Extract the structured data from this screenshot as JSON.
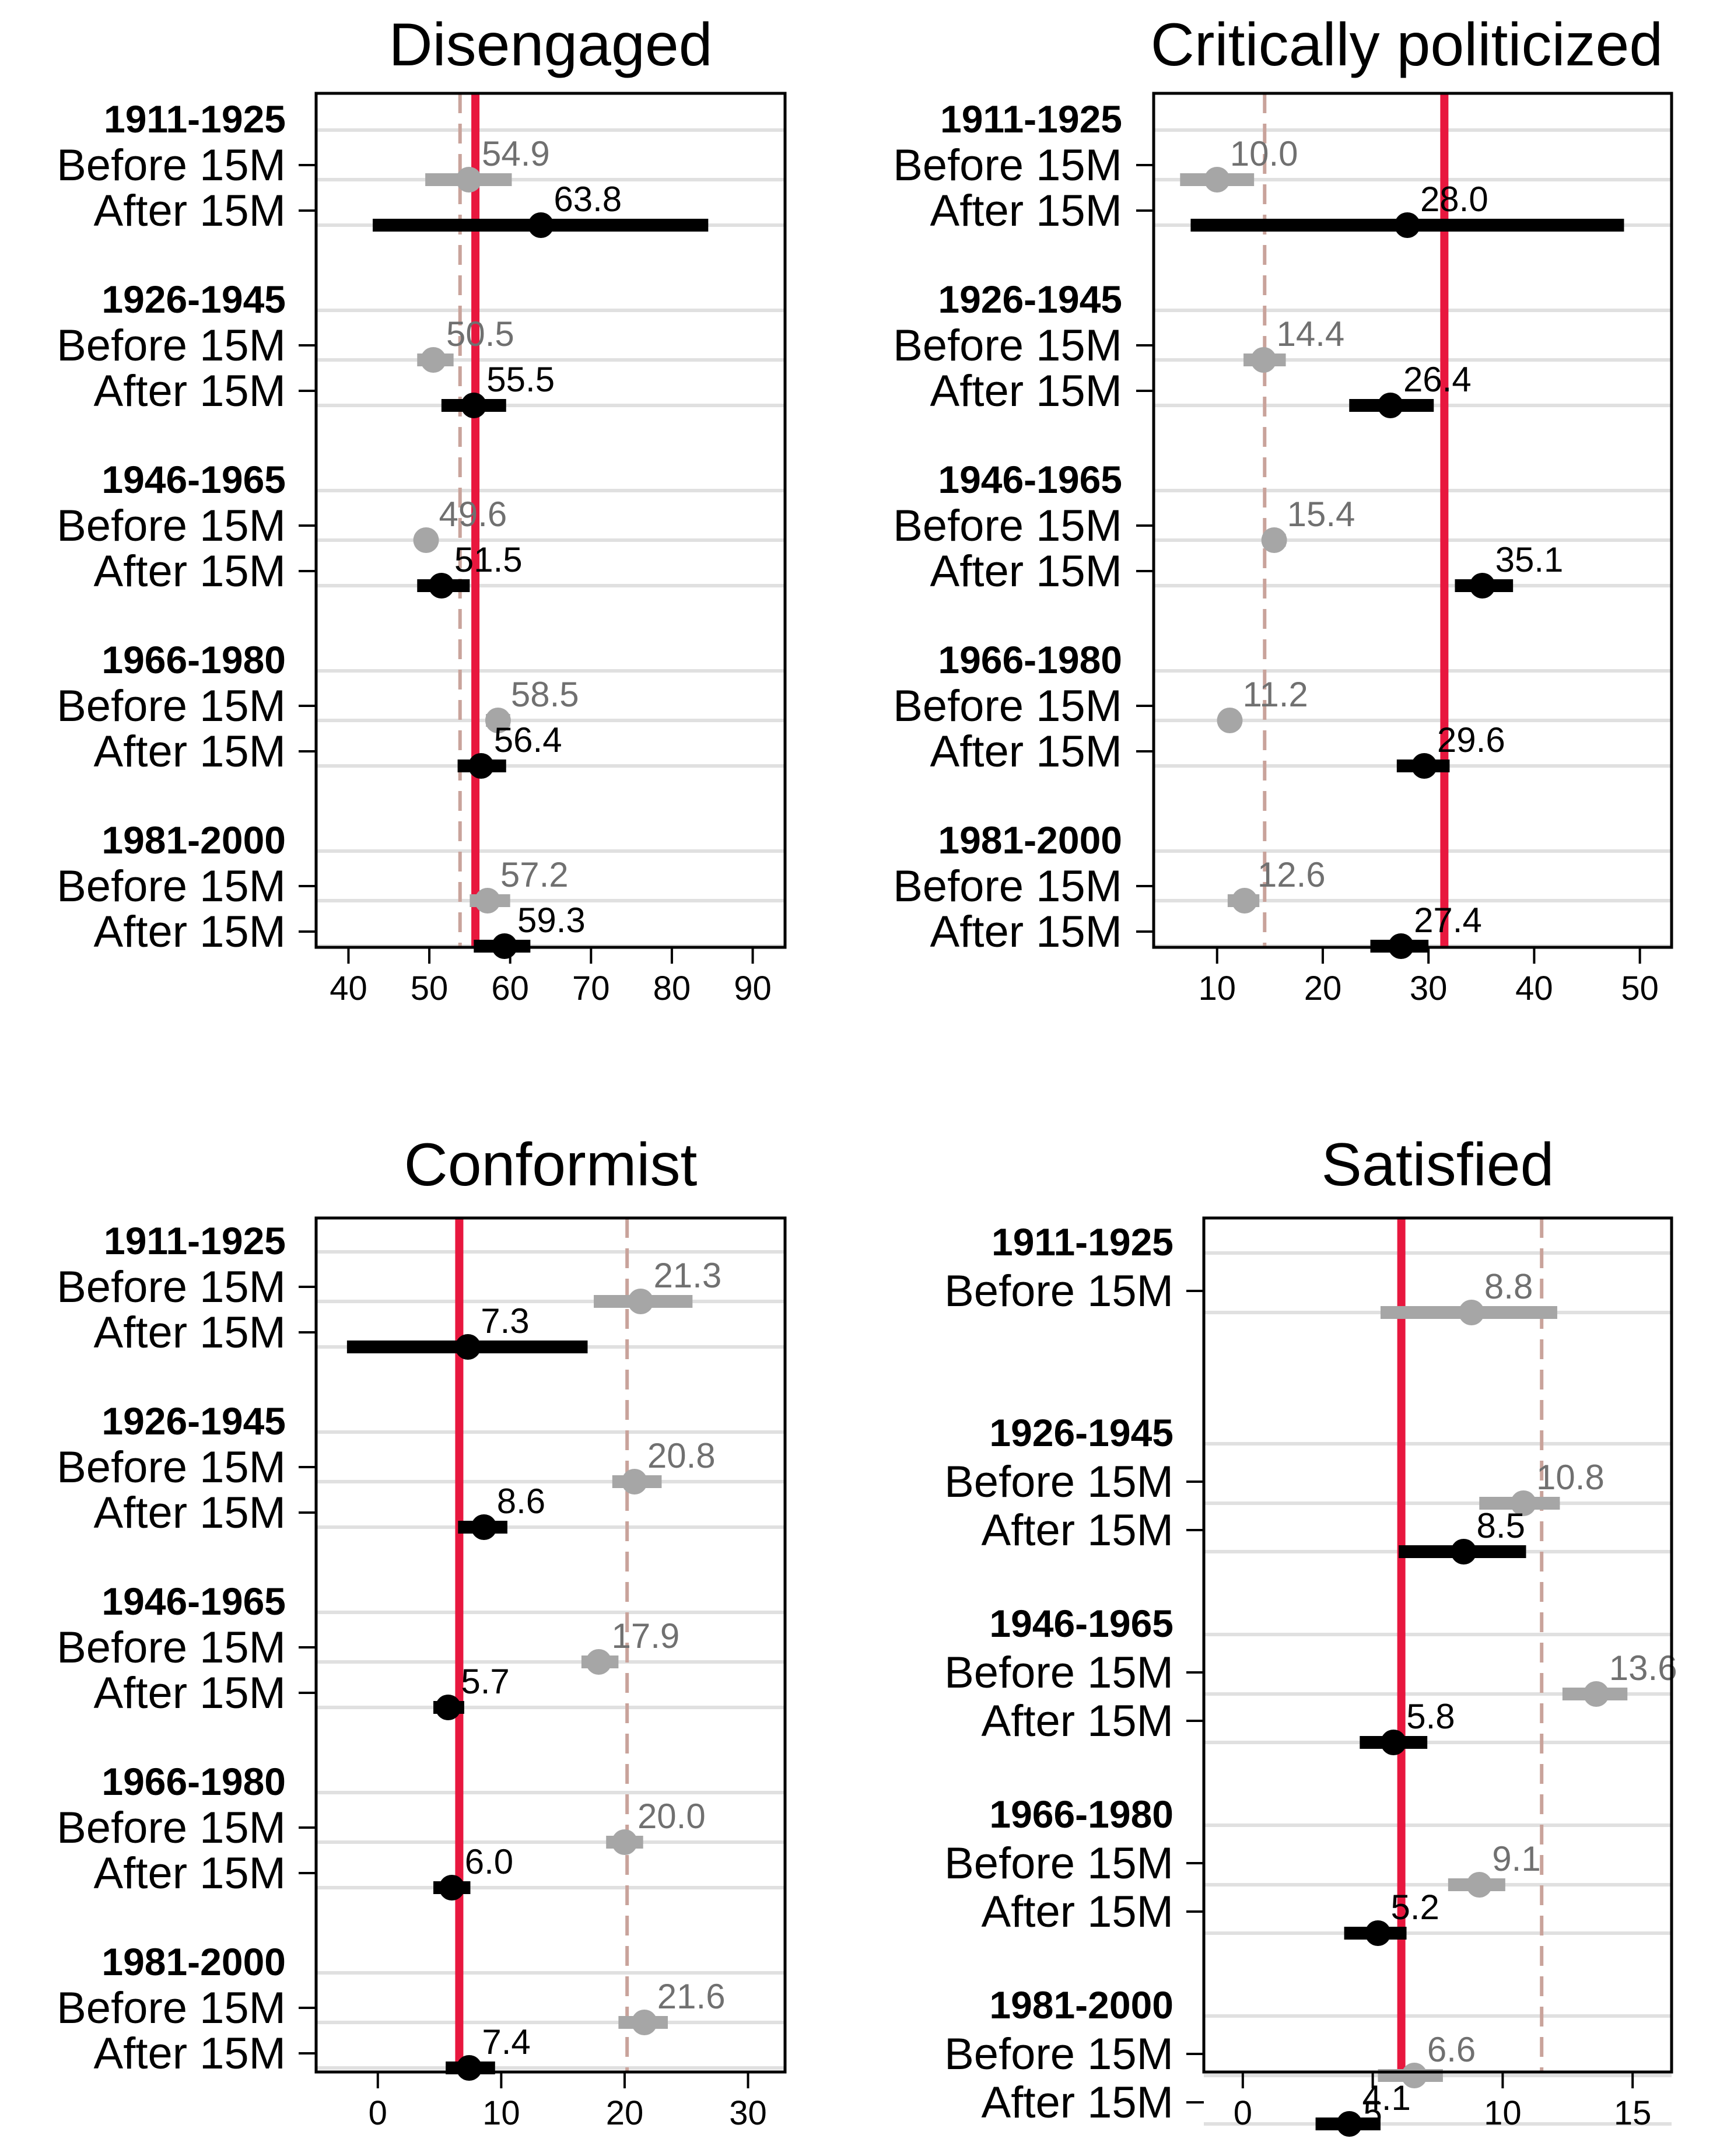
{
  "colors": {
    "before": "#a6a6a6",
    "after": "#000000",
    "before_label": "#707070",
    "after_label": "#000000",
    "reference": "#e8173e",
    "dashed": "#c9a39b",
    "gridline": "#e0e0e0"
  },
  "chart_data": [
    {
      "type": "dot-and-whisker",
      "title": "Disengaged",
      "xlim": [
        36,
        94
      ],
      "xticks": [
        40,
        50,
        60,
        70,
        80,
        90
      ],
      "reference_line": 55.7,
      "dashed_line": 53.8,
      "groups": [
        {
          "cohort": "1911-1925",
          "rows": [
            {
              "period": "Before 15M",
              "value": 54.9,
              "label": "54.9",
              "ci": [
                49.5,
                60.2
              ]
            },
            {
              "period": "After 15M",
              "value": 63.8,
              "label": "63.8",
              "ci": [
                43.0,
                84.5
              ]
            }
          ]
        },
        {
          "cohort": "1926-1945",
          "rows": [
            {
              "period": "Before 15M",
              "value": 50.5,
              "label": "50.5",
              "ci": [
                48.5,
                53.0
              ]
            },
            {
              "period": "After 15M",
              "value": 55.5,
              "label": "55.5",
              "ci": [
                51.5,
                59.5
              ]
            }
          ]
        },
        {
          "cohort": "1946-1965",
          "rows": [
            {
              "period": "Before 15M",
              "value": 49.6,
              "label": "49.6",
              "ci": [
                48.5,
                51.0
              ]
            },
            {
              "period": "After 15M",
              "value": 51.5,
              "label": "51.5",
              "ci": [
                48.5,
                55.0
              ]
            }
          ]
        },
        {
          "cohort": "1966-1980",
          "rows": [
            {
              "period": "Before 15M",
              "value": 58.5,
              "label": "58.5",
              "ci": [
                57.0,
                60.0
              ]
            },
            {
              "period": "After 15M",
              "value": 56.4,
              "label": "56.4",
              "ci": [
                53.5,
                59.5
              ]
            }
          ]
        },
        {
          "cohort": "1981-2000",
          "rows": [
            {
              "period": "Before 15M",
              "value": 57.2,
              "label": "57.2",
              "ci": [
                55.0,
                60.0
              ]
            },
            {
              "period": "After 15M",
              "value": 59.3,
              "label": "59.3",
              "ci": [
                55.5,
                62.5
              ]
            }
          ]
        }
      ]
    },
    {
      "type": "dot-and-whisker",
      "title": "Critically politicized",
      "xlim": [
        4,
        53
      ],
      "xticks": [
        10,
        20,
        30,
        40,
        50
      ],
      "reference_line": 31.5,
      "dashed_line": 14.5,
      "groups": [
        {
          "cohort": "1911-1925",
          "rows": [
            {
              "period": "Before 15M",
              "value": 10.0,
              "label": "10.0",
              "ci": [
                6.5,
                13.5
              ]
            },
            {
              "period": "After 15M",
              "value": 28.0,
              "label": "28.0",
              "ci": [
                7.5,
                48.5
              ]
            }
          ]
        },
        {
          "cohort": "1926-1945",
          "rows": [
            {
              "period": "Before 15M",
              "value": 14.4,
              "label": "14.4",
              "ci": [
                12.5,
                16.5
              ]
            },
            {
              "period": "After 15M",
              "value": 26.4,
              "label": "26.4",
              "ci": [
                22.5,
                30.5
              ]
            }
          ]
        },
        {
          "cohort": "1946-1965",
          "rows": [
            {
              "period": "Before 15M",
              "value": 15.4,
              "label": "15.4",
              "ci": [
                14.5,
                16.5
              ]
            },
            {
              "period": "After 15M",
              "value": 35.1,
              "label": "35.1",
              "ci": [
                32.5,
                38.0
              ]
            }
          ]
        },
        {
          "cohort": "1966-1980",
          "rows": [
            {
              "period": "Before 15M",
              "value": 11.2,
              "label": "11.2",
              "ci": [
                10.5,
                12.0
              ]
            },
            {
              "period": "After 15M",
              "value": 29.6,
              "label": "29.6",
              "ci": [
                27.0,
                32.0
              ]
            }
          ]
        },
        {
          "cohort": "1981-2000",
          "rows": [
            {
              "period": "Before 15M",
              "value": 12.6,
              "label": "12.6",
              "ci": [
                11.0,
                14.0
              ]
            },
            {
              "period": "After 15M",
              "value": 27.4,
              "label": "27.4",
              "ci": [
                24.5,
                30.0
              ]
            }
          ]
        }
      ]
    },
    {
      "type": "dot-and-whisker",
      "title": "Conformist",
      "xlim": [
        -5,
        33
      ],
      "xticks": [
        0,
        10,
        20,
        30
      ],
      "reference_line": 6.6,
      "dashed_line": 20.2,
      "groups": [
        {
          "cohort": "1911-1925",
          "rows": [
            {
              "period": "Before 15M",
              "value": 21.3,
              "label": "21.3",
              "ci": [
                17.5,
                25.5
              ]
            },
            {
              "period": "After 15M",
              "value": 7.3,
              "label": "7.3",
              "ci": [
                -2.5,
                17.0
              ]
            }
          ]
        },
        {
          "cohort": "1926-1945",
          "rows": [
            {
              "period": "Before 15M",
              "value": 20.8,
              "label": "20.8",
              "ci": [
                19.0,
                23.0
              ]
            },
            {
              "period": "After 15M",
              "value": 8.6,
              "label": "8.6",
              "ci": [
                6.5,
                10.5
              ]
            }
          ]
        },
        {
          "cohort": "1946-1965",
          "rows": [
            {
              "period": "Before 15M",
              "value": 17.9,
              "label": "17.9",
              "ci": [
                16.5,
                19.5
              ]
            },
            {
              "period": "After 15M",
              "value": 5.7,
              "label": "5.7",
              "ci": [
                4.5,
                7.0
              ]
            }
          ]
        },
        {
          "cohort": "1966-1980",
          "rows": [
            {
              "period": "Before 15M",
              "value": 20.0,
              "label": "20.0",
              "ci": [
                18.5,
                21.5
              ]
            },
            {
              "period": "After 15M",
              "value": 6.0,
              "label": "6.0",
              "ci": [
                4.5,
                7.5
              ]
            }
          ]
        },
        {
          "cohort": "1981-2000",
          "rows": [
            {
              "period": "Before 15M",
              "value": 21.6,
              "label": "21.6",
              "ci": [
                19.5,
                23.5
              ]
            },
            {
              "period": "After 15M",
              "value": 7.4,
              "label": "7.4",
              "ci": [
                5.5,
                9.5
              ]
            }
          ]
        }
      ]
    },
    {
      "type": "dot-and-whisker",
      "title": "Satisfied",
      "xlim": [
        -1.5,
        16.5
      ],
      "xticks": [
        0,
        5,
        10,
        15
      ],
      "reference_line": 6.1,
      "dashed_line": 11.5,
      "groups": [
        {
          "cohort": "1911-1925",
          "rows": [
            {
              "period": "Before 15M",
              "value": 8.8,
              "label": "8.8",
              "ci": [
                5.3,
                12.1
              ]
            }
          ]
        },
        {
          "cohort": "1926-1945",
          "rows": [
            {
              "period": "Before 15M",
              "value": 10.8,
              "label": "10.8",
              "ci": [
                9.1,
                12.2
              ]
            },
            {
              "period": "After 15M",
              "value": 8.5,
              "label": "8.5",
              "ci": [
                6.0,
                10.9
              ]
            }
          ]
        },
        {
          "cohort": "1946-1965",
          "rows": [
            {
              "period": "Before 15M",
              "value": 13.6,
              "label": "13.6",
              "ci": [
                12.3,
                14.8
              ]
            },
            {
              "period": "After 15M",
              "value": 5.8,
              "label": "5.8",
              "ci": [
                4.5,
                7.1
              ]
            }
          ]
        },
        {
          "cohort": "1966-1980",
          "rows": [
            {
              "period": "Before 15M",
              "value": 9.1,
              "label": "9.1",
              "ci": [
                7.9,
                10.1
              ]
            },
            {
              "period": "After 15M",
              "value": 5.2,
              "label": "5.2",
              "ci": [
                3.9,
                6.3
              ]
            }
          ]
        },
        {
          "cohort": "1981-2000",
          "rows": [
            {
              "period": "Before 15M",
              "value": 6.6,
              "label": "6.6",
              "ci": [
                5.2,
                7.7
              ]
            },
            {
              "period": "After 15M",
              "value": 4.1,
              "label": "4.1",
              "ci": [
                2.8,
                5.3
              ]
            }
          ]
        }
      ]
    }
  ]
}
